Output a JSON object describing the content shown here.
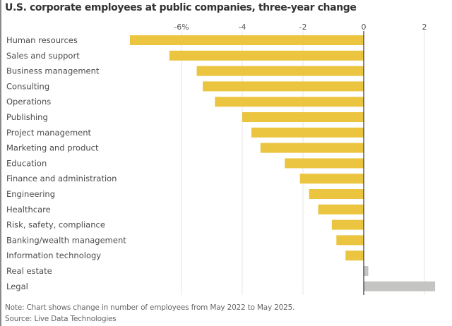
{
  "chart_data": {
    "type": "bar",
    "orientation": "horizontal",
    "title": "U.S. corporate employees at public companies, three-year change",
    "xlabel": "",
    "ylabel": "",
    "unit": "%",
    "xlim": [
      -7.8,
      2.4
    ],
    "xticks": [
      -6,
      -4,
      -2,
      0,
      2
    ],
    "xtick_labels": [
      "-6%",
      "-4",
      "-2",
      "0",
      "2"
    ],
    "grid": true,
    "categories": [
      "Human resources",
      "Sales and support",
      "Business management",
      "Consulting",
      "Operations",
      "Publishing",
      "Project management",
      "Marketing and product",
      "Education",
      "Finance and administration",
      "Engineering",
      "Healthcare",
      "Risk, safety, compliance",
      "Banking/wealth management",
      "Information technology",
      "Real estate",
      "Legal"
    ],
    "values": [
      -7.7,
      -6.4,
      -5.5,
      -5.3,
      -4.9,
      -4.0,
      -3.7,
      -3.4,
      -2.6,
      -2.1,
      -1.8,
      -1.5,
      -1.05,
      -0.9,
      -0.6,
      0.15,
      2.35
    ],
    "colors": {
      "negative": "#ebc440",
      "positive": "#c4c4c2",
      "zero_axis": "#333333",
      "grid": "#e6e6e6"
    },
    "note": "Note: Chart shows change in number of employees from May 2022 to May 2025.",
    "source": "Source: Live Data Technologies"
  }
}
